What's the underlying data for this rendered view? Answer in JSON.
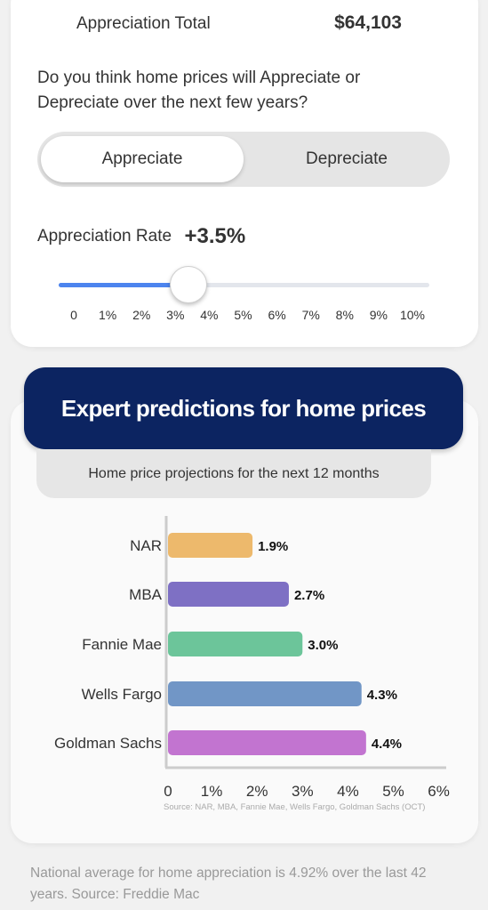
{
  "appreciation": {
    "total_label": "Appreciation Total",
    "total_value": "$64,103",
    "question": "Do you think home prices will Appreciate or Depreciate over the next few years?",
    "toggle": {
      "selected": "Appreciate",
      "options": [
        "Appreciate",
        "Depreciate"
      ]
    },
    "rate_label": "Appreciation Rate",
    "rate_value": "+3.5%",
    "slider": {
      "value": 3.5,
      "min": 0,
      "max": 10,
      "accent": "#4c84ee",
      "ticks": [
        "0",
        "1%",
        "2%",
        "3%",
        "4%",
        "5%",
        "6%",
        "7%",
        "8%",
        "9%",
        "10%"
      ]
    }
  },
  "predictions": {
    "banner_title": "Expert predictions for home prices",
    "subtitle": "Home price projections for the next 12 months"
  },
  "chart_data": {
    "type": "bar",
    "orientation": "horizontal",
    "categories": [
      "NAR",
      "MBA",
      "Fannie Mae",
      "Wells Fargo",
      "Goldman Sachs"
    ],
    "values": [
      1.9,
      2.7,
      3.0,
      4.3,
      4.4
    ],
    "value_labels": [
      "1.9%",
      "2.7%",
      "3.0%",
      "4.3%",
      "4.4%"
    ],
    "colors": [
      "#edb96c",
      "#7e70c4",
      "#6cc59a",
      "#7196c6",
      "#c274d0"
    ],
    "xlim": [
      0,
      6
    ],
    "xticks": [
      "0",
      "1%",
      "2%",
      "3%",
      "4%",
      "5%",
      "6%"
    ],
    "source": "Source: NAR, MBA, Fannie Mae, Wells Fargo, Goldman Sachs (OCT)"
  },
  "footer": "National average for home appreciation is 4.92% over the last 42 years. Source: Freddie Mac"
}
